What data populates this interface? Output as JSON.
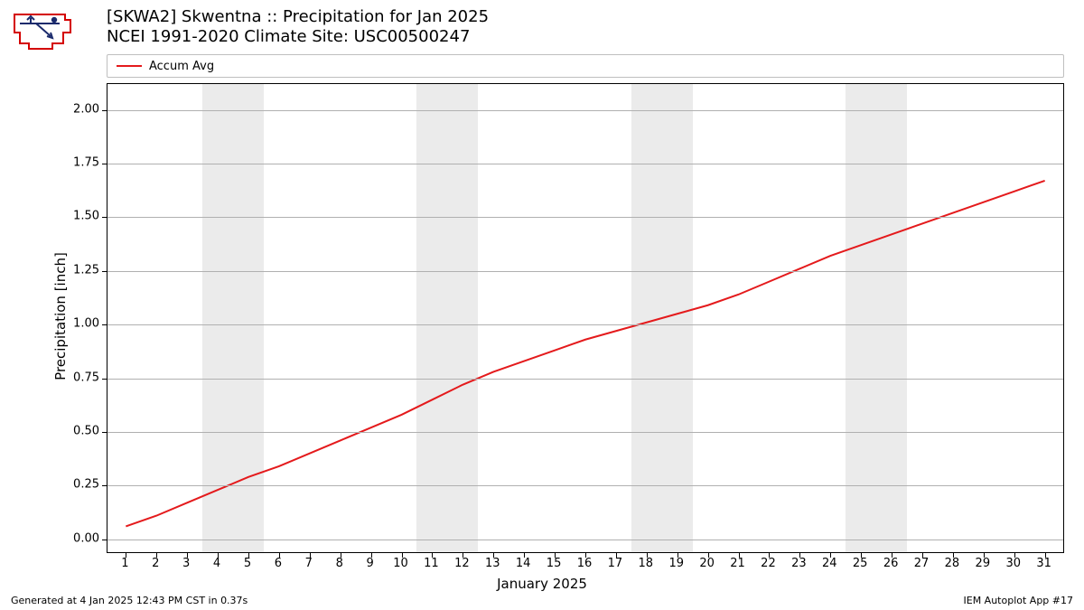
{
  "logo": {
    "outline_color": "#d40000",
    "glyph_color": "#1a2a6c"
  },
  "title": {
    "line1": "[SKWA2] Skwentna :: Precipitation for Jan 2025",
    "line2": "NCEI 1991-2020 Climate Site: USC00500247",
    "fontsize": 18,
    "color": "#000000"
  },
  "legend": {
    "items": [
      {
        "label": "Accum Avg",
        "color": "#e41a1c"
      }
    ],
    "border_color": "#bfbfbf",
    "fontsize": 13
  },
  "chart": {
    "type": "line",
    "background_color": "#ffffff",
    "grid_color": "#b0b0b0",
    "axis_color": "#000000",
    "weekend_band_color": "#ebebeb",
    "weekend_bands_days": [
      [
        4,
        5
      ],
      [
        11,
        12
      ],
      [
        18,
        19
      ],
      [
        25,
        26
      ]
    ],
    "x": {
      "label": "January 2025",
      "min": 0.4,
      "max": 31.6,
      "ticks": [
        1,
        2,
        3,
        4,
        5,
        6,
        7,
        8,
        9,
        10,
        11,
        12,
        13,
        14,
        15,
        16,
        17,
        18,
        19,
        20,
        21,
        22,
        23,
        24,
        25,
        26,
        27,
        28,
        29,
        30,
        31
      ],
      "tick_fontsize": 13,
      "label_fontsize": 15
    },
    "y": {
      "label": "Precipitation [inch]",
      "min": -0.06,
      "max": 2.12,
      "ticks": [
        0.0,
        0.25,
        0.5,
        0.75,
        1.0,
        1.25,
        1.5,
        1.75,
        2.0
      ],
      "tick_labels": [
        "0.00",
        "0.25",
        "0.50",
        "0.75",
        "1.00",
        "1.25",
        "1.50",
        "1.75",
        "2.00"
      ],
      "tick_fontsize": 13,
      "label_fontsize": 15
    },
    "series": [
      {
        "name": "Accum Avg",
        "color": "#e41a1c",
        "line_width": 2,
        "x": [
          1,
          2,
          3,
          4,
          5,
          6,
          7,
          8,
          9,
          10,
          11,
          12,
          13,
          14,
          15,
          16,
          17,
          18,
          19,
          20,
          21,
          22,
          23,
          24,
          25,
          26,
          27,
          28,
          29,
          30,
          31
        ],
        "y": [
          0.06,
          0.11,
          0.17,
          0.23,
          0.29,
          0.34,
          0.4,
          0.46,
          0.52,
          0.58,
          0.65,
          0.72,
          0.78,
          0.83,
          0.88,
          0.93,
          0.97,
          1.01,
          1.05,
          1.09,
          1.14,
          1.2,
          1.26,
          1.32,
          1.37,
          1.42,
          1.47,
          1.52,
          1.57,
          1.62,
          1.67
        ]
      }
    ]
  },
  "footer": {
    "left": "Generated at 4 Jan 2025 12:43 PM CST in 0.37s",
    "right": "IEM Autoplot App #17",
    "fontsize": 11
  }
}
